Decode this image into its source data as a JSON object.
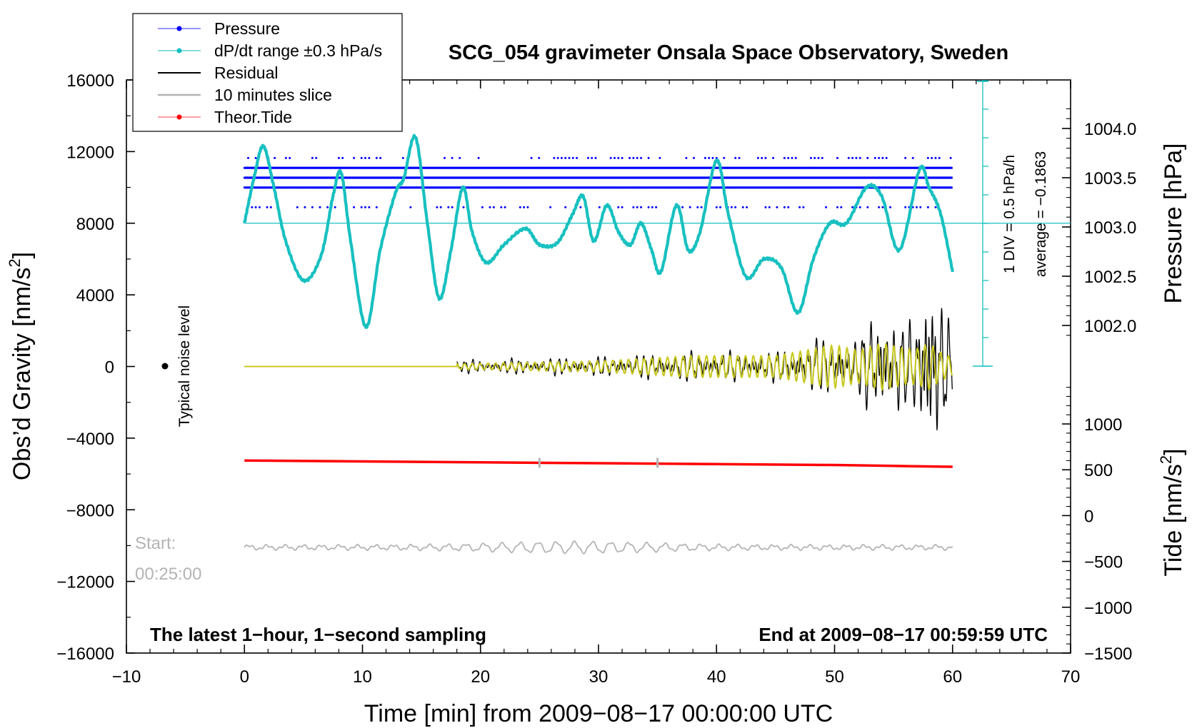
{
  "chart_data": {
    "type": "line",
    "title": "SCG_054 gravimeter Onsala Space Observatory, Sweden",
    "xlabel": "Time [min] from 2009−08−17 00:00:00 UTC",
    "ylabel_left": "Obs’d Gravity [nm/s",
    "ylabel_left_sup": "2",
    "ylabel_left_close": "]",
    "ylabel_right_pressure": "Pressure [hPa]",
    "ylabel_right_tide": "Tide [nm/s",
    "ylabel_right_tide_sup": "2",
    "ylabel_right_tide_close": "]",
    "xlim": [
      -10,
      70
    ],
    "ylim_left": [
      -16000,
      16000
    ],
    "x_ticks": [
      "−10",
      "0",
      "10",
      "20",
      "30",
      "40",
      "50",
      "60",
      "70"
    ],
    "y_ticks_left": [
      "16000",
      "12000",
      "8000",
      "4000",
      "0",
      "−4000",
      "−8000",
      "−12000",
      "−16000"
    ],
    "pressure_ticks": [
      "1004.0",
      "1003.5",
      "1003.0",
      "1002.5",
      "1002.0"
    ],
    "tide_ticks": [
      "1000",
      "500",
      "0",
      "−500",
      "−1000",
      "−1500"
    ],
    "legend": [
      {
        "label": "Pressure",
        "color": "#0000ff",
        "marker": true
      },
      {
        "label": "dP/dt range ±0.3 hPa/s",
        "color": "#00c0c0",
        "marker": true
      },
      {
        "label": "Residual",
        "color": "#000000",
        "marker": false
      },
      {
        "label": "10 minutes slice",
        "color": "#b4b4b4",
        "marker": false
      },
      {
        "label": "Theor.Tide",
        "color": "#ff0000",
        "marker": true
      }
    ],
    "annotations": {
      "scale_div": "1 DIV = 0.5 hPa/h",
      "average": "average = −0.1863",
      "noise": "Typical noise level",
      "footer_left": "The latest 1−hour, 1−second sampling",
      "footer_right": "End at 2009−08−17 00:59:59 UTC",
      "start_label": "Start:",
      "start_time": "00:25:00"
    },
    "series": [
      {
        "name": "dP/dt",
        "color": "#18c0c0",
        "x": [
          0,
          0.8,
          1.6,
          2.5,
          3.5,
          5.0,
          6.5,
          7.5,
          8.2,
          9.0,
          10.3,
          11.5,
          12.8,
          13.5,
          14.5,
          15.5,
          16.5,
          17.5,
          18.5,
          19.3,
          20.5,
          22.0,
          23.8,
          25.0,
          26.5,
          27.8,
          28.7,
          29.6,
          30.7,
          31.7,
          32.7,
          33.6,
          34.5,
          35.3,
          36.6,
          37.6,
          38.6,
          40.0,
          41.0,
          42.5,
          44.0,
          45.5,
          46.9,
          48.2,
          49.6,
          51.0,
          52.7,
          54.0,
          55.5,
          57.2,
          58.0,
          59.0,
          60.0
        ],
        "y": [
          8000,
          10500,
          12300,
          10000,
          7000,
          4800,
          6200,
          9500,
          10800,
          7000,
          2200,
          6500,
          9700,
          10500,
          12800,
          8000,
          3800,
          6500,
          10000,
          7500,
          5800,
          6800,
          7700,
          6800,
          6900,
          8500,
          9500,
          7000,
          9000,
          7500,
          6800,
          8000,
          6500,
          5300,
          9000,
          6500,
          7500,
          11500,
          8500,
          5000,
          6000,
          5500,
          3000,
          6000,
          8000,
          8000,
          10000,
          9500,
          6500,
          11000,
          10000,
          8500,
          5300
        ]
      },
      {
        "name": "Pressure",
        "color": "#0000ff",
        "levels_hPa": [
          1003.2,
          1003.4,
          1003.5,
          1003.6,
          1003.7
        ]
      },
      {
        "name": "Residual",
        "color": "#000000",
        "x": [
          18,
          30,
          38,
          45,
          50,
          52,
          54,
          56,
          57,
          58,
          59,
          60
        ],
        "amplitude": [
          300,
          450,
          700,
          700,
          1500,
          1200,
          3500,
          1800,
          2500,
          7000,
          3500,
          1500
        ]
      },
      {
        "name": "Filtered",
        "color": "#c8c820",
        "x": [
          18,
          30,
          38,
          45,
          50,
          52,
          54,
          56,
          57,
          58,
          59,
          60
        ],
        "amplitude": [
          150,
          300,
          600,
          600,
          1200,
          900,
          1300,
          1000,
          1000,
          1300,
          800,
          500
        ]
      },
      {
        "name": "Theor.Tide",
        "color": "#ff0000",
        "x": [
          0,
          10,
          20,
          30,
          40,
          50,
          55,
          60
        ],
        "y": [
          -5250,
          -5300,
          -5350,
          -5400,
          -5450,
          -5500,
          -5550,
          -5600
        ]
      },
      {
        "name": "10 minutes slice",
        "color": "#b4b4b4",
        "x_range": [
          0,
          60
        ],
        "baseline": -10100,
        "amplitude": 300
      }
    ]
  }
}
